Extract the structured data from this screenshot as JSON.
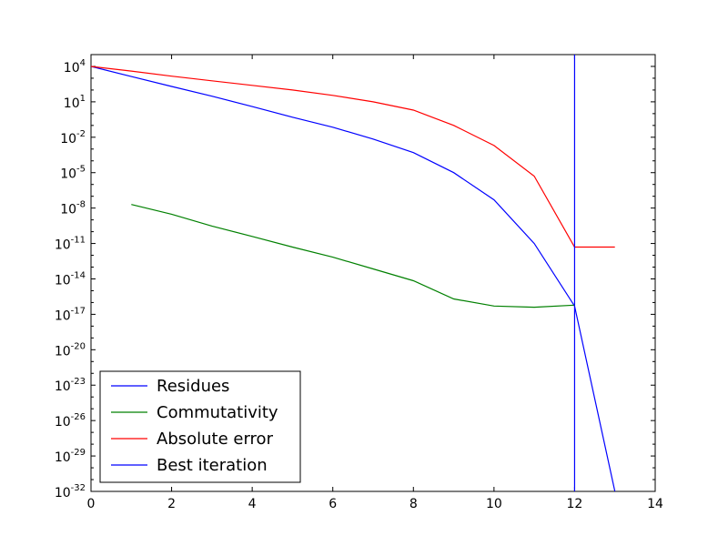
{
  "chart_data": {
    "type": "line",
    "xlim": [
      0,
      14
    ],
    "ylim_exponent": [
      -32,
      5
    ],
    "y_scale": "log",
    "grid": false,
    "legend_placement": "lower-left",
    "x_ticks": [
      0,
      2,
      4,
      6,
      8,
      10,
      12,
      14
    ],
    "x_tick_labels": [
      "0",
      "2",
      "4",
      "6",
      "8",
      "10",
      "12",
      "14"
    ],
    "y_ticks_exponent": [
      -32,
      -29,
      -26,
      -23,
      -20,
      -17,
      -14,
      -11,
      -8,
      -5,
      -2,
      1,
      4
    ],
    "y_tick_base": "10",
    "y_tick_exponent_labels": [
      "-32",
      "-29",
      "-26",
      "-23",
      "-20",
      "-17",
      "-14",
      "-11",
      "-8",
      "-5",
      "-2",
      "1",
      "4"
    ],
    "series": [
      {
        "name": "Residues",
        "color": "#0000ff",
        "x": [
          0,
          1,
          2,
          3,
          4,
          5,
          6,
          7,
          8,
          9,
          10,
          11,
          12,
          13
        ],
        "y": [
          10000.0,
          1400.0,
          200.0,
          30.0,
          4.0,
          0.5,
          0.07,
          0.007,
          0.0005,
          1e-05,
          5e-08,
          1e-11,
          5e-17,
          1e-32
        ]
      },
      {
        "name": "Commutativity",
        "color": "#008000",
        "x": [
          1,
          2,
          3,
          4,
          5,
          6,
          7,
          8,
          9,
          10,
          11,
          12
        ],
        "y": [
          2e-08,
          3e-09,
          3e-10,
          4e-11,
          5e-12,
          7e-13,
          7e-14,
          7e-15,
          2e-16,
          5e-17,
          4e-17,
          6e-17
        ]
      },
      {
        "name": "Absolute error",
        "color": "#ff0000",
        "x": [
          0,
          1,
          2,
          3,
          4,
          5,
          6,
          7,
          8,
          9,
          10,
          11,
          12,
          13
        ],
        "y": [
          10000.0,
          4000.0,
          1500.0,
          600.0,
          250.0,
          100.0,
          35.0,
          10.0,
          2.0,
          0.1,
          0.002,
          5e-06,
          5e-12,
          5e-12
        ]
      },
      {
        "name": "Best iteration",
        "color": "#0000ff",
        "vline_x": 12
      }
    ]
  }
}
